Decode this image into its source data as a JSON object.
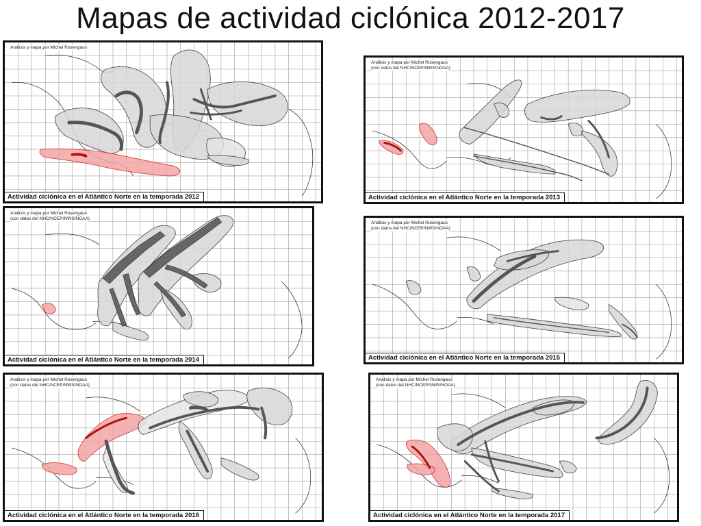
{
  "title": "Mapas de actividad ciclónica 2012-2017",
  "colors": {
    "track": "#666666",
    "swath": "#d8d8d8",
    "highlight": "#f4a5a5",
    "highlight_stroke": "#cc2222"
  },
  "panels": [
    {
      "year": "2012",
      "caption": "Actividad ciclónica en el Atlántico Norte en la temporada 2012",
      "credit": [
        "Análisis y mapa por Michel Rosengaus"
      ]
    },
    {
      "year": "2013",
      "caption": "Actividad ciclónica en el Atlántico Norte en la temporada 2013",
      "credit": [
        "Análisis y mapa por Michel Rosengaus",
        "(con datos del NHC/NCEP/NWS/NOAA)"
      ]
    },
    {
      "year": "2014",
      "caption": "Actividad ciclónica en el Atlántico Norte en la temporada 2014",
      "credit": [
        "Análisis y mapa por Michel Rosengaus",
        "(con datos del NHC/NCEP/NWS/NOAA)"
      ]
    },
    {
      "year": "2015",
      "caption": "Actividad ciclónica en el Atlántico Norte en la temporada 2015",
      "credit": [
        "Análisis y mapa por Michel Rosengaus",
        "(con datos del NHC/NCEP/NWS/NOAA)"
      ]
    },
    {
      "year": "2016",
      "caption": "Actividad ciclónica en el Atlántico Norte en la temporada 2016",
      "credit": [
        "Análisis y mapa por Michel Rosengaus",
        "(con datos del NHC/NCEP/NWS/NOAA)"
      ]
    },
    {
      "year": "2017",
      "caption": "Actividad ciclónica en el Atlántico Norte en la temporada 2017",
      "credit": [
        "Análisis y mapa por Michel Rosengaus",
        "(con datos del NHC/NCEP/NWS/NOAA)"
      ]
    }
  ]
}
